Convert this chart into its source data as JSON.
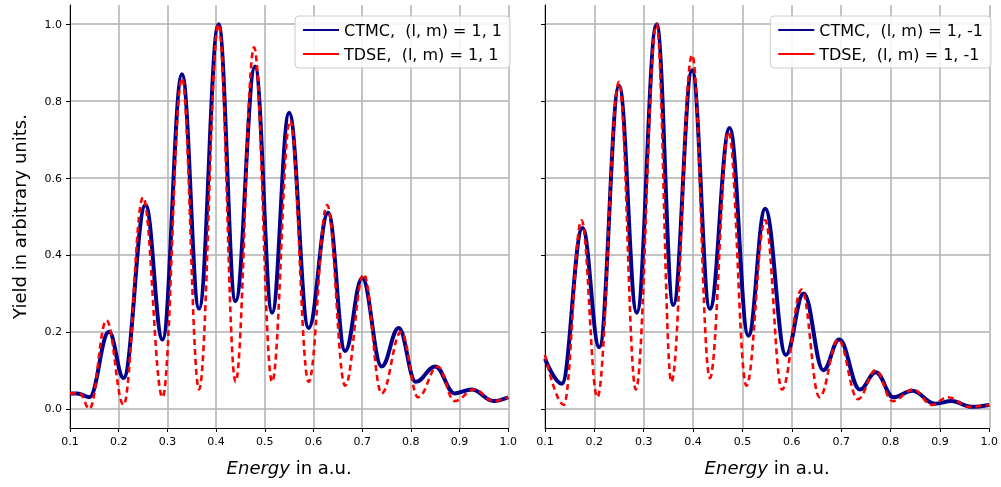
{
  "chart_data": [
    {
      "type": "line",
      "xlabel": "Energy in a.u.",
      "ylabel": "Yield in arbitrary units.",
      "xlim": [
        0.1,
        1.0
      ],
      "ylim": [
        -0.05,
        1.05
      ],
      "xticks": [
        0.1,
        0.2,
        0.3,
        0.4,
        0.5,
        0.6,
        0.7,
        0.8,
        0.9,
        {
          "value": 1.0,
          "label": "1.0"
        }
      ],
      "yticks": [
        {
          "value": 0,
          "label": "0.0"
        },
        0.2,
        0.4,
        0.6,
        0.8,
        {
          "value": 1.0,
          "label": "1.0"
        }
      ],
      "grid": true,
      "legend": "top right",
      "marker": "none",
      "series": [
        {
          "name": "CTMC,  (l, m) = 1, 1",
          "color": "#00008b",
          "line_style": "solid",
          "x": [
            0.1,
            0.115,
            0.14,
            0.18,
            0.21,
            0.255,
            0.29,
            0.33,
            0.365,
            0.405,
            0.44,
            0.48,
            0.515,
            0.55,
            0.59,
            0.63,
            0.665,
            0.7,
            0.74,
            0.775,
            0.81,
            0.85,
            0.89,
            0.925,
            0.97,
            1.0
          ],
          "values": [
            0.04,
            0.04,
            0.03,
            0.2,
            0.08,
            0.53,
            0.18,
            0.87,
            0.26,
            1.0,
            0.28,
            0.89,
            0.25,
            0.77,
            0.21,
            0.51,
            0.15,
            0.34,
            0.11,
            0.21,
            0.07,
            0.11,
            0.04,
            0.05,
            0.02,
            0.03
          ]
        },
        {
          "name": "TDSE,  (l, m) = 1, 1",
          "color": "#ff0000",
          "line_style": "dashed",
          "x": [
            0.1,
            0.12,
            0.14,
            0.175,
            0.21,
            0.25,
            0.29,
            0.33,
            0.365,
            0.405,
            0.44,
            0.478,
            0.515,
            0.552,
            0.59,
            0.628,
            0.665,
            0.703,
            0.74,
            0.78,
            0.815,
            0.855,
            0.89,
            0.93,
            0.97,
            1.0
          ],
          "values": [
            0.04,
            0.04,
            0.0,
            0.23,
            0.01,
            0.55,
            0.03,
            0.86,
            0.05,
            1.0,
            0.07,
            0.94,
            0.07,
            0.75,
            0.07,
            0.53,
            0.06,
            0.35,
            0.04,
            0.2,
            0.03,
            0.11,
            0.02,
            0.05,
            0.02,
            0.03
          ]
        }
      ]
    },
    {
      "type": "line",
      "xlabel": "Energy in a.u.",
      "xlim": [
        0.1,
        1.0
      ],
      "ylim": [
        -0.05,
        1.05
      ],
      "xticks": [
        0.1,
        0.2,
        0.3,
        0.4,
        0.5,
        0.6,
        0.7,
        0.8,
        0.9,
        {
          "value": 1.0,
          "label": "1.0"
        }
      ],
      "yticks": [
        0,
        0.2,
        0.4,
        0.6,
        0.8,
        1.0
      ],
      "tick_labels": "x",
      "grid": true,
      "legend": "top right",
      "marker": "none",
      "series": [
        {
          "name": "CTMC,  (l, m) = 1, -1",
          "color": "#00008b",
          "line_style": "solid",
          "x": [
            0.1,
            0.134,
            0.176,
            0.21,
            0.25,
            0.286,
            0.326,
            0.36,
            0.398,
            0.434,
            0.474,
            0.512,
            0.546,
            0.588,
            0.624,
            0.664,
            0.696,
            0.738,
            0.77,
            0.806,
            0.844,
            0.89,
            0.924,
            0.964,
            1.0
          ],
          "values": [
            0.13,
            0.065,
            0.47,
            0.16,
            0.84,
            0.25,
            1.0,
            0.27,
            0.88,
            0.26,
            0.73,
            0.19,
            0.52,
            0.14,
            0.3,
            0.1,
            0.18,
            0.05,
            0.095,
            0.03,
            0.047,
            0.013,
            0.02,
            0.005,
            0.01
          ]
        },
        {
          "name": "TDSE,  (l, m) = 1, -1",
          "color": "#ff0000",
          "line_style": "dashed",
          "x": [
            0.1,
            0.138,
            0.174,
            0.206,
            0.25,
            0.284,
            0.326,
            0.356,
            0.398,
            0.434,
            0.472,
            0.508,
            0.546,
            0.58,
            0.62,
            0.656,
            0.694,
            0.734,
            0.77,
            0.804,
            0.846,
            0.884,
            0.916,
            0.96,
            1.0
          ],
          "values": [
            0.14,
            0.01,
            0.49,
            0.03,
            0.85,
            0.05,
            1.0,
            0.07,
            0.92,
            0.08,
            0.72,
            0.06,
            0.49,
            0.05,
            0.31,
            0.03,
            0.18,
            0.025,
            0.1,
            0.02,
            0.05,
            0.01,
            0.03,
            0.005,
            0.01
          ]
        }
      ]
    }
  ]
}
